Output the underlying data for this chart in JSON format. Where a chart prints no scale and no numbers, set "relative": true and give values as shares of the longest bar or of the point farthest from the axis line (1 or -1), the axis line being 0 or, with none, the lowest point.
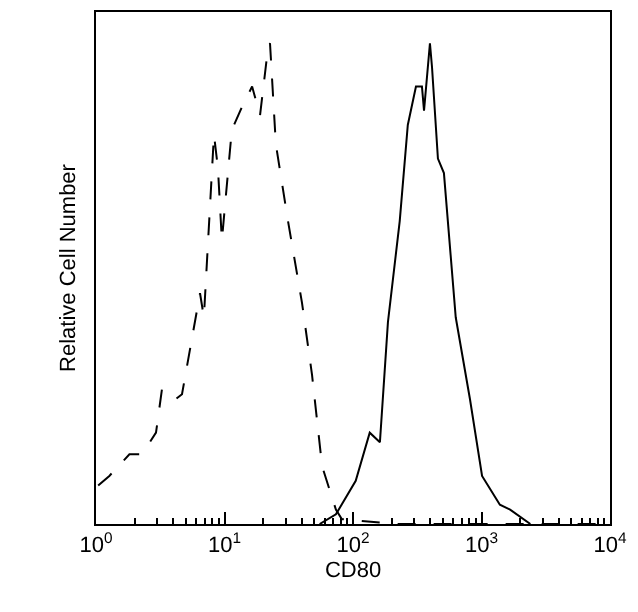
{
  "chart_data": {
    "type": "line",
    "relative": true,
    "xlabel": "CD80",
    "ylabel": "Relative Cell Number",
    "log": "x",
    "marker": "none",
    "xlim": [
      1,
      10000
    ],
    "xticks": [
      {
        "value": 1,
        "label": "10$^{0}$"
      },
      {
        "value": 10,
        "label": "10$^{1}$"
      },
      {
        "value": 100,
        "label": "10$^{2}$"
      },
      {
        "value": 1000,
        "label": "10$^{3}$"
      },
      {
        "value": 10000,
        "label": "10$^{4}$"
      }
    ],
    "series": [
      {
        "color": "#000000",
        "line_style": "dashed",
        "x": [
          1.04,
          1.27,
          1.82,
          2.28,
          2.93,
          3.26,
          4.19,
          4.67,
          6.45,
          6.91,
          8.28,
          8.89,
          9.54,
          11.4,
          13.8,
          16.4,
          18.9,
          21.8,
          22.6,
          25.1,
          31.2,
          40.1,
          48.0,
          57.5,
          73.6,
          82.0,
          216,
          1290,
          9500
        ],
        "values": [
          0.08,
          0.1,
          0.145,
          0.145,
          0.19,
          0.28,
          0.26,
          0.27,
          0.48,
          0.43,
          0.81,
          0.74,
          0.59,
          0.82,
          0.87,
          0.91,
          0.85,
          0.99,
          1,
          0.79,
          0.63,
          0.46,
          0.31,
          0.12,
          0.03,
          0.01,
          0,
          0,
          0
        ]
      },
      {
        "color": "#000000",
        "line_style": "solid",
        "x": [
          55,
          73.6,
          105,
          135,
          162,
          187,
          231,
          267,
          309,
          344,
          357,
          397,
          412,
          458,
          510,
          630,
          813,
          1010,
          1390,
          1670,
          2400
        ],
        "values": [
          0,
          0.02,
          0.09,
          0.19,
          0.17,
          0.42,
          0.63,
          0.83,
          0.91,
          0.91,
          0.86,
          1,
          0.95,
          0.76,
          0.73,
          0.43,
          0.26,
          0.1,
          0.04,
          0.03,
          0
        ]
      }
    ]
  }
}
